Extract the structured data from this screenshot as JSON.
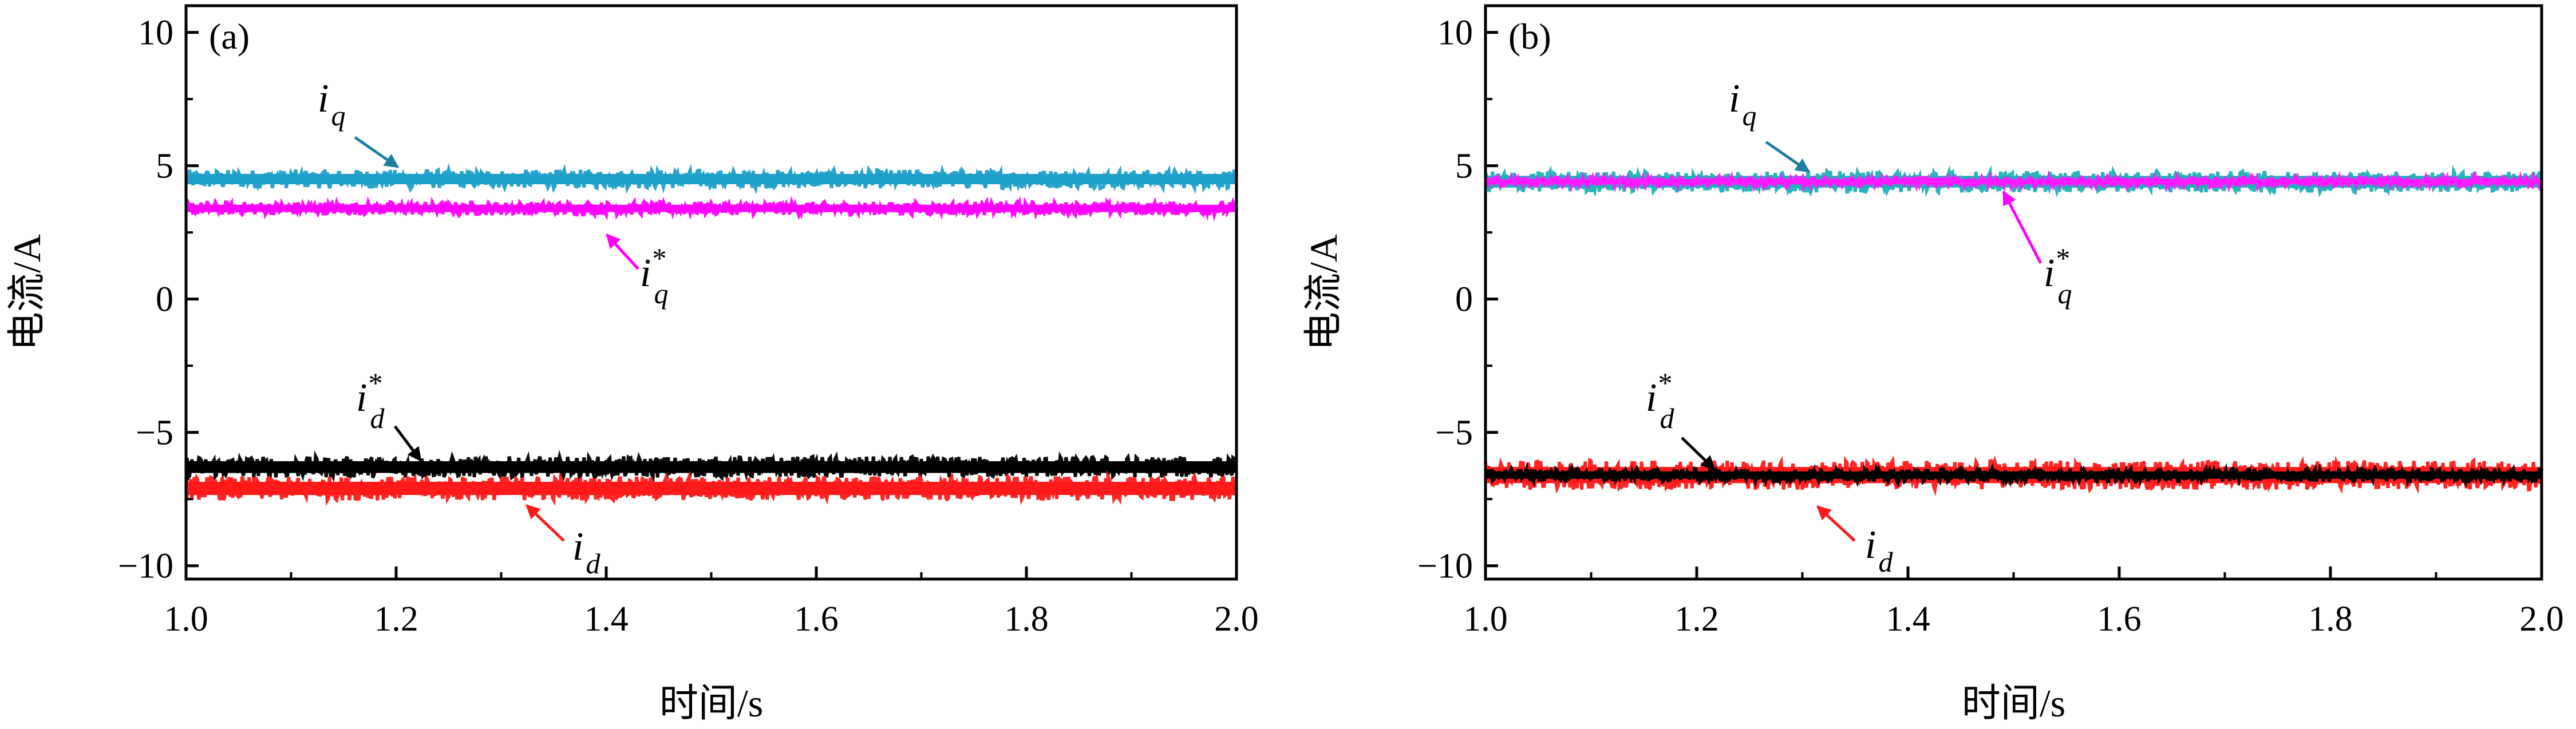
{
  "chart_data": [
    {
      "type": "line",
      "panel_label": "(a)",
      "xlabel": "时间/s",
      "ylabel": "电流/A",
      "xlim": [
        1.0,
        2.0
      ],
      "ylim": [
        -10.5,
        11
      ],
      "x_ticks": [
        "1.0",
        "1.2",
        "1.4",
        "1.6",
        "1.8",
        "2.0"
      ],
      "y_ticks": [
        "10",
        "5",
        "0",
        "−5",
        "−10"
      ],
      "series": [
        {
          "name": "iq",
          "color": "#1e9fc9",
          "x": [
            1.0,
            2.0
          ],
          "values": [
            4.5,
            4.5
          ],
          "ripple": 0.35
        },
        {
          "name": "iq*",
          "color": "#ff00ff",
          "x": [
            1.0,
            2.0
          ],
          "values": [
            3.4,
            3.4
          ],
          "ripple": 0.25
        },
        {
          "name": "id*",
          "color": "#000000",
          "x": [
            1.0,
            2.0
          ],
          "values": [
            -6.3,
            -6.3
          ],
          "ripple": 0.4
        },
        {
          "name": "id",
          "color": "#ff1a1a",
          "x": [
            1.0,
            2.0
          ],
          "values": [
            -7.1,
            -7.1
          ],
          "ripple": 0.45
        }
      ],
      "annotations": [
        {
          "label": "i",
          "sub": "q",
          "sup": "",
          "color": "#1e7fa0"
        },
        {
          "label": "i",
          "sub": "q",
          "sup": "*",
          "color": "#ff00ff"
        },
        {
          "label": "i",
          "sub": "d",
          "sup": "*",
          "color": "#000000"
        },
        {
          "label": "i",
          "sub": "d",
          "sup": "",
          "color": "#ff1a1a"
        }
      ]
    },
    {
      "type": "line",
      "panel_label": "(b)",
      "xlabel": "时间/s",
      "ylabel": "电流/A",
      "xlim": [
        1.0,
        2.0
      ],
      "ylim": [
        -10.5,
        11
      ],
      "x_ticks": [
        "1.0",
        "1.2",
        "1.4",
        "1.6",
        "1.8",
        "2.0"
      ],
      "y_ticks": [
        "10",
        "5",
        "0",
        "−5",
        "−10"
      ],
      "series": [
        {
          "name": "iq",
          "color": "#20b0b8",
          "x": [
            1.0,
            2.0
          ],
          "values": [
            4.4,
            4.4
          ],
          "ripple": 0.4
        },
        {
          "name": "iq*",
          "color": "#ff1aff",
          "x": [
            1.0,
            2.0
          ],
          "values": [
            4.4,
            4.4
          ],
          "ripple": 0.18
        },
        {
          "name": "id",
          "color": "#ff1a1a",
          "x": [
            1.0,
            2.0
          ],
          "values": [
            -6.6,
            -6.6
          ],
          "ripple": 0.55
        },
        {
          "name": "id*",
          "color": "#000000",
          "x": [
            1.0,
            2.0
          ],
          "values": [
            -6.6,
            -6.6
          ],
          "ripple": 0.25
        }
      ],
      "annotations": [
        {
          "label": "i",
          "sub": "q",
          "sup": "",
          "color": "#1e7fa0"
        },
        {
          "label": "i",
          "sub": "q",
          "sup": "*",
          "color": "#ff00ff"
        },
        {
          "label": "i",
          "sub": "d",
          "sup": "*",
          "color": "#000000"
        },
        {
          "label": "i",
          "sub": "d",
          "sup": "",
          "color": "#ff1a1a"
        }
      ]
    }
  ]
}
